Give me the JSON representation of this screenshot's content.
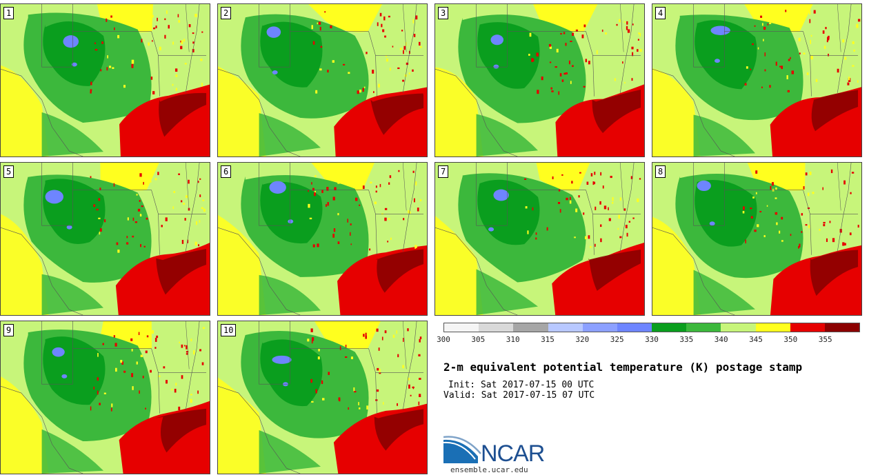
{
  "panels": [
    {
      "label": "1"
    },
    {
      "label": "2"
    },
    {
      "label": "3"
    },
    {
      "label": "4"
    },
    {
      "label": "5"
    },
    {
      "label": "6"
    },
    {
      "label": "7"
    },
    {
      "label": "8"
    },
    {
      "label": "9"
    },
    {
      "label": "10"
    }
  ],
  "colorbar": {
    "colors": [
      "#f5f5f5",
      "#d9d9d9",
      "#a6a6a6",
      "#b8c8ff",
      "#8ca0ff",
      "#6e85ff",
      "#0a9e1e",
      "#3cb83c",
      "#c7f57a",
      "#ffff1f",
      "#e60000",
      "#8b0000"
    ],
    "ticks": [
      "300",
      "305",
      "310",
      "315",
      "320",
      "325",
      "330",
      "335",
      "340",
      "345",
      "350",
      "355"
    ]
  },
  "title": "2-m equivalent potential temperature (K) postage stamp",
  "init": "Init: Sat 2017-07-15 00 UTC",
  "valid": "Valid: Sat 2017-07-15 07 UTC",
  "logo": {
    "text": "NCAR",
    "url": "ensemble.ucar.edu"
  }
}
